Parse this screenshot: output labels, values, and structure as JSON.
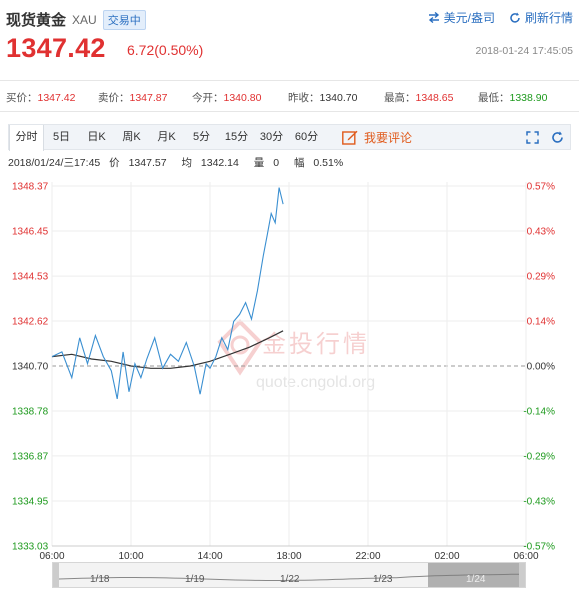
{
  "header": {
    "name": "现货黄金",
    "code": "XAU",
    "status": "交易中",
    "currency_action": "美元/盎司",
    "refresh_action": "刷新行情",
    "price": "1347.42",
    "change": "6.72(0.50%)",
    "datetime": "2018-01-24 17:45:05"
  },
  "quotes": [
    {
      "label": "买价：",
      "value": "1347.42",
      "trend": "up"
    },
    {
      "label": "卖价：",
      "value": "1347.87",
      "trend": "up"
    },
    {
      "label": "今开：",
      "value": "1340.80",
      "trend": "up"
    },
    {
      "label": "昨收：",
      "value": "1340.70",
      "trend": "flat"
    },
    {
      "label": "最高：",
      "value": "1348.65",
      "trend": "up"
    },
    {
      "label": "最低：",
      "value": "1338.90",
      "trend": "down"
    }
  ],
  "tabs": [
    "分时",
    "5日",
    "日K",
    "周K",
    "月K",
    "5分",
    "15分",
    "30分",
    "60分"
  ],
  "comment_label": "我要评论",
  "info": {
    "date": "2018/01/24/三17:45",
    "price_label": "价",
    "price": "1347.57",
    "avg_label": "均",
    "avg": "1342.14",
    "vol_label": "量",
    "vol": "0",
    "amp_label": "幅",
    "amp": "0.51%"
  },
  "watermark": {
    "brand": "金投行情",
    "url": "quote.cngold.org"
  },
  "colors": {
    "up": "#e03131",
    "down": "#1e9a1e",
    "accent": "#2b6fc0",
    "price_line": "#3a8fd1",
    "avg_line": "#333333",
    "comment": "#e05a1b"
  },
  "chart_data": {
    "type": "line",
    "base": 1340.7,
    "ylim": [
      1333.03,
      1348.37
    ],
    "y_ticks_left": [
      "1348.37",
      "1346.45",
      "1344.53",
      "1342.62",
      "1340.70",
      "1338.78",
      "1336.87",
      "1334.95",
      "1333.03"
    ],
    "y_ticks_right": [
      "0.57%",
      "0.43%",
      "0.29%",
      "0.14%",
      "0.00%",
      "-0.14%",
      "-0.29%",
      "-0.43%",
      "-0.57%"
    ],
    "x_ticks": [
      "06:00",
      "10:00",
      "14:00",
      "18:00",
      "22:00",
      "02:00",
      "06:00"
    ],
    "x_range_hours": [
      6,
      30
    ],
    "series": [
      {
        "key": "price",
        "x": [
          6.0,
          6.5,
          7.0,
          7.4,
          7.8,
          8.2,
          8.6,
          9.0,
          9.3,
          9.6,
          9.9,
          10.2,
          10.5,
          10.8,
          11.2,
          11.6,
          12.0,
          12.4,
          12.8,
          13.2,
          13.5,
          13.8,
          14.0,
          14.3,
          14.6,
          14.9,
          15.2,
          15.5,
          15.8,
          16.1,
          16.4,
          16.7,
          16.9,
          17.1,
          17.3,
          17.5,
          17.7
        ],
        "y": [
          1341.1,
          1341.3,
          1340.2,
          1341.9,
          1340.8,
          1342.0,
          1341.1,
          1340.5,
          1339.3,
          1341.3,
          1339.6,
          1340.8,
          1340.2,
          1341.0,
          1341.9,
          1340.6,
          1341.2,
          1340.9,
          1341.7,
          1340.7,
          1339.5,
          1340.8,
          1340.6,
          1341.1,
          1341.9,
          1341.4,
          1342.6,
          1342.9,
          1343.4,
          1342.7,
          1343.9,
          1345.4,
          1346.3,
          1347.2,
          1346.8,
          1348.3,
          1347.6
        ]
      },
      {
        "key": "average",
        "x": [
          6.0,
          7.0,
          8.0,
          9.0,
          10.0,
          11.0,
          12.0,
          13.0,
          14.0,
          15.0,
          16.0,
          17.0,
          17.7
        ],
        "y": [
          1341.1,
          1341.2,
          1341.0,
          1340.9,
          1340.7,
          1340.6,
          1340.6,
          1340.7,
          1340.9,
          1341.2,
          1341.5,
          1341.9,
          1342.2
        ]
      }
    ],
    "navigator_labels": [
      "1/18",
      "1/19",
      "1/22",
      "1/23",
      "1/24"
    ]
  }
}
